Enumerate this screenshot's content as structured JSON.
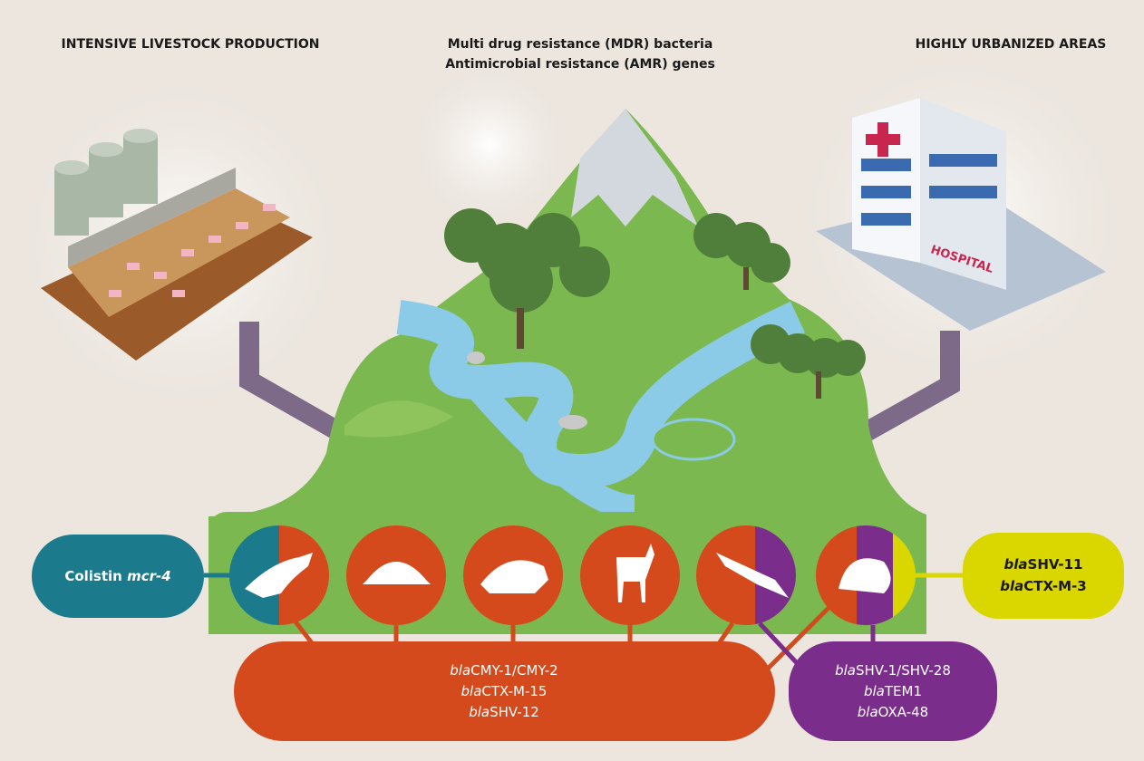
{
  "header": {
    "left_title": "INTENSIVE LIVESTOCK PRODUCTION",
    "center_title": [
      "Multi drug resistance (MDR) bacteria",
      "Antimicrobial resistance (AMR) genes"
    ],
    "right_title": "HIGHLY URBANIZED AREAS"
  },
  "building_sign": "HOSPITAL",
  "labels": {
    "colistin": {
      "text": "Colistin",
      "gene": "mcr-4"
    },
    "yellow": [
      {
        "prefix": "bla",
        "name": "SHV-11"
      },
      {
        "prefix": "bla",
        "name": "CTX-M-3"
      }
    ],
    "orange": [
      {
        "prefix": "bla",
        "name": "CMY-1/CMY-2"
      },
      {
        "prefix": "bla",
        "name": "CTX-M-15"
      },
      {
        "prefix": "bla",
        "name": "SHV-12"
      }
    ],
    "purple": [
      {
        "prefix": "bla",
        "name": "SHV-1/SHV-28"
      },
      {
        "prefix": "bla",
        "name": "TEM1"
      },
      {
        "prefix": "bla",
        "name": "OXA-48"
      }
    ]
  }
}
